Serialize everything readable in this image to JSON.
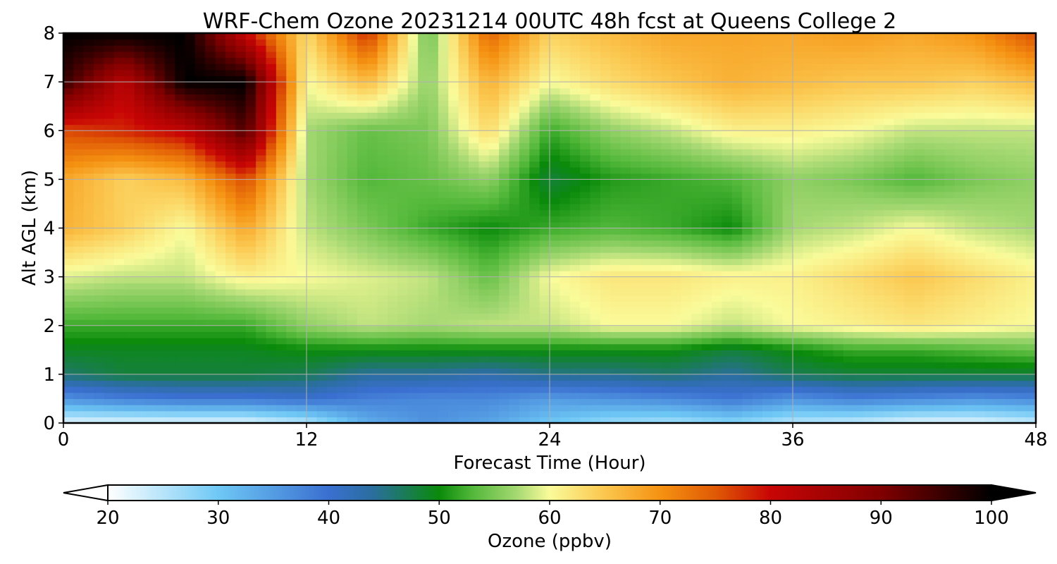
{
  "chart_data": {
    "type": "heatmap",
    "title": "WRF-Chem Ozone  20231214 00UTC 48h fcst at Queens College 2",
    "xlabel": "Forecast Time (Hour)",
    "ylabel": "Alt AGL (km)",
    "xlim": [
      0,
      48
    ],
    "ylim": [
      0,
      8
    ],
    "xticks": [
      0,
      12,
      24,
      36,
      48
    ],
    "yticks": [
      0,
      1,
      2,
      3,
      4,
      5,
      6,
      7,
      8
    ],
    "grid": true,
    "x": [
      0,
      3,
      6,
      9,
      12,
      15,
      18,
      21,
      24,
      27,
      30,
      33,
      36,
      39,
      42,
      45,
      48
    ],
    "y": [
      0,
      0.5,
      1,
      1.5,
      2,
      3,
      4,
      5,
      6,
      7,
      8
    ],
    "z": [
      [
        22,
        22,
        22,
        22,
        25,
        33,
        36,
        34,
        30,
        27,
        26,
        28,
        25,
        24,
        22,
        22,
        24
      ],
      [
        36,
        38,
        39,
        39,
        40,
        38,
        37,
        37,
        35,
        36,
        37,
        39,
        36,
        38,
        37,
        36,
        37
      ],
      [
        46,
        48,
        48,
        48,
        47,
        44,
        44,
        43,
        45,
        45,
        46,
        44,
        47,
        48,
        48,
        48,
        48
      ],
      [
        49,
        49,
        49,
        49,
        50,
        50,
        50,
        50,
        50,
        50,
        50,
        48,
        50,
        52,
        52,
        53,
        54
      ],
      [
        52,
        52,
        52,
        52,
        56,
        58,
        57,
        58,
        58,
        60,
        60,
        58,
        60,
        61,
        62,
        61,
        60
      ],
      [
        59,
        58,
        58,
        61,
        60,
        59,
        58,
        54,
        60,
        62,
        62,
        61,
        61,
        63,
        65,
        63,
        61
      ],
      [
        67,
        64,
        60,
        68,
        58,
        55,
        52,
        50,
        52,
        53,
        52,
        50,
        57,
        58,
        60,
        58,
        57
      ],
      [
        68,
        64,
        66,
        76,
        57,
        53,
        54,
        56,
        48,
        51,
        52,
        53,
        56,
        55,
        53,
        55,
        56
      ],
      [
        76,
        78,
        81,
        94,
        57,
        54,
        55,
        63,
        52,
        56,
        58,
        61,
        61,
        60,
        58,
        58,
        58
      ],
      [
        96,
        82,
        100,
        100,
        60,
        66,
        56,
        67,
        60,
        63,
        65,
        67,
        66,
        65,
        65,
        64,
        66
      ],
      [
        100,
        100,
        100,
        80,
        63,
        78,
        54,
        74,
        64,
        66,
        68,
        68,
        68,
        69,
        68,
        70,
        76
      ]
    ],
    "colorbar": {
      "label": "Ozone  (ppbv)",
      "min": 20,
      "max": 100,
      "ticks": [
        20,
        30,
        40,
        50,
        60,
        70,
        80,
        90,
        100
      ],
      "extend": "both",
      "colormap_stops": [
        {
          "v": 20,
          "c": "#ffffff"
        },
        {
          "v": 30,
          "c": "#6ec8f5"
        },
        {
          "v": 40,
          "c": "#3a6fd0"
        },
        {
          "v": 44,
          "c": "#2a6e9e"
        },
        {
          "v": 50,
          "c": "#0a8a0a"
        },
        {
          "v": 53,
          "c": "#52b83a"
        },
        {
          "v": 57,
          "c": "#a5d872"
        },
        {
          "v": 60,
          "c": "#fafb9a"
        },
        {
          "v": 65,
          "c": "#fbc64e"
        },
        {
          "v": 70,
          "c": "#f59212"
        },
        {
          "v": 75,
          "c": "#e05a05"
        },
        {
          "v": 80,
          "c": "#c80505"
        },
        {
          "v": 90,
          "c": "#800000"
        },
        {
          "v": 100,
          "c": "#000000"
        }
      ]
    }
  }
}
